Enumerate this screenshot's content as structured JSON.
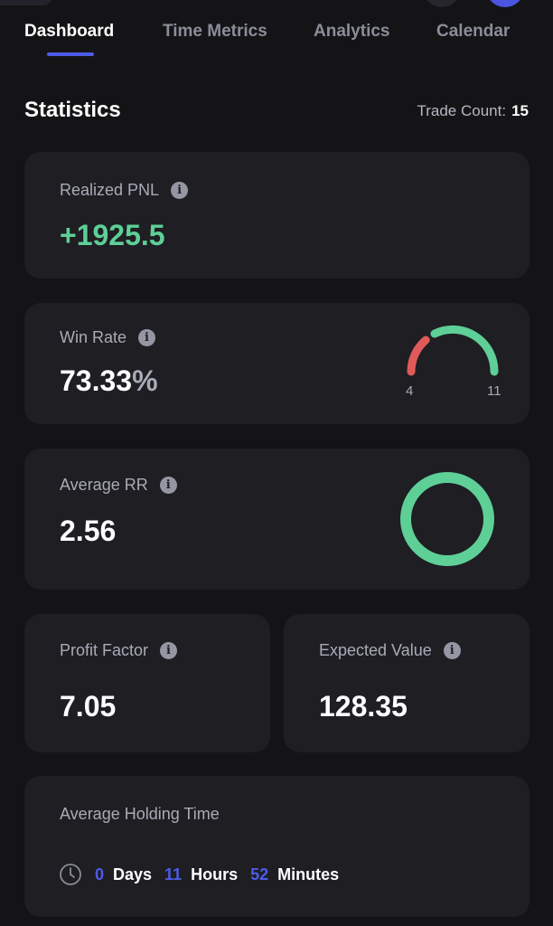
{
  "tabs": [
    {
      "label": "Dashboard",
      "active": true
    },
    {
      "label": "Time Metrics",
      "active": false
    },
    {
      "label": "Analytics",
      "active": false
    },
    {
      "label": "Calendar",
      "active": false
    }
  ],
  "statistics": {
    "title": "Statistics",
    "trade_count_label": "Trade Count:",
    "trade_count_value": "15"
  },
  "cards": {
    "realized_pnl": {
      "label": "Realized PNL",
      "value": "+1925.5",
      "icon": "info-icon"
    },
    "win_rate": {
      "label": "Win Rate",
      "value": "73.33",
      "unit": "%",
      "icon": "info-icon",
      "gauge": {
        "losses": "4",
        "wins": "11",
        "loss_color": "#e05a5a",
        "win_color": "#5ecf96"
      }
    },
    "average_rr": {
      "label": "Average RR",
      "value": "2.56",
      "icon": "info-icon",
      "ring_color": "#5ecf96"
    },
    "profit_factor": {
      "label": "Profit Factor",
      "value": "7.05",
      "icon": "info-icon"
    },
    "expected_value": {
      "label": "Expected Value",
      "value": "128.35",
      "icon": "info-icon"
    },
    "holding_time": {
      "label": "Average Holding Time",
      "icon": "clock-icon",
      "days": "0",
      "days_label": "Days",
      "hours": "11",
      "hours_label": "Hours",
      "minutes": "52",
      "minutes_label": "Minutes"
    }
  },
  "colors": {
    "accent": "#4e5be8",
    "positive": "#5ecf96",
    "negative": "#e05a5a",
    "background": "#141417",
    "card": "#1e1e23"
  }
}
